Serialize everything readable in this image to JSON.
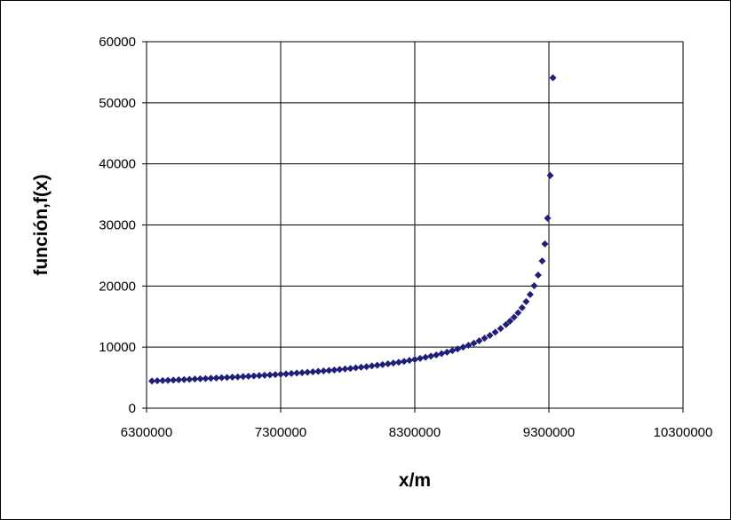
{
  "chart_data": {
    "type": "scatter",
    "title": "",
    "xlabel": "x/m",
    "ylabel": "función,f(x)",
    "xlim": [
      6300000,
      10300000
    ],
    "ylim": [
      0,
      60000
    ],
    "xticks": [
      6300000,
      7300000,
      8300000,
      9300000,
      10300000
    ],
    "yticks": [
      0,
      10000,
      20000,
      30000,
      40000,
      50000,
      60000
    ],
    "x_tick_labels": [
      "6300000",
      "7300000",
      "8300000",
      "9300000",
      "10300000"
    ],
    "y_tick_labels": [
      "0",
      "10000",
      "20000",
      "30000",
      "40000",
      "50000",
      "60000"
    ],
    "grid": true,
    "marker": "diamond",
    "colors": {
      "marker": "#1f1f7a",
      "grid": "#000000",
      "frame": "#000000"
    },
    "series": [
      {
        "points": [
          [
            6340000,
            4450
          ],
          [
            6380000,
            4480
          ],
          [
            6420000,
            4520
          ],
          [
            6460000,
            4560
          ],
          [
            6500000,
            4600
          ],
          [
            6540000,
            4640
          ],
          [
            6580000,
            4680
          ],
          [
            6620000,
            4720
          ],
          [
            6660000,
            4770
          ],
          [
            6700000,
            4810
          ],
          [
            6740000,
            4850
          ],
          [
            6780000,
            4900
          ],
          [
            6820000,
            4940
          ],
          [
            6860000,
            4990
          ],
          [
            6900000,
            5030
          ],
          [
            6940000,
            5080
          ],
          [
            6980000,
            5130
          ],
          [
            7020000,
            5180
          ],
          [
            7060000,
            5230
          ],
          [
            7100000,
            5280
          ],
          [
            7140000,
            5340
          ],
          [
            7180000,
            5390
          ],
          [
            7220000,
            5450
          ],
          [
            7260000,
            5500
          ],
          [
            7300000,
            5560
          ],
          [
            7340000,
            5620
          ],
          [
            7380000,
            5680
          ],
          [
            7420000,
            5750
          ],
          [
            7460000,
            5810
          ],
          [
            7500000,
            5880
          ],
          [
            7540000,
            5950
          ],
          [
            7580000,
            6020
          ],
          [
            7620000,
            6100
          ],
          [
            7660000,
            6170
          ],
          [
            7700000,
            6250
          ],
          [
            7740000,
            6340
          ],
          [
            7780000,
            6420
          ],
          [
            7820000,
            6510
          ],
          [
            7860000,
            6610
          ],
          [
            7900000,
            6700
          ],
          [
            7940000,
            6800
          ],
          [
            7980000,
            6910
          ],
          [
            8020000,
            7020
          ],
          [
            8060000,
            7140
          ],
          [
            8100000,
            7260
          ],
          [
            8140000,
            7390
          ],
          [
            8180000,
            7520
          ],
          [
            8220000,
            7670
          ],
          [
            8260000,
            7820
          ],
          [
            8300000,
            7980
          ],
          [
            8340000,
            8150
          ],
          [
            8380000,
            8330
          ],
          [
            8420000,
            8520
          ],
          [
            8460000,
            8720
          ],
          [
            8500000,
            8940
          ],
          [
            8540000,
            9170
          ],
          [
            8580000,
            9420
          ],
          [
            8620000,
            9690
          ],
          [
            8660000,
            9990
          ],
          [
            8700000,
            10300
          ],
          [
            8740000,
            10650
          ],
          [
            8780000,
            11030
          ],
          [
            8820000,
            11450
          ],
          [
            8860000,
            11920
          ],
          [
            8900000,
            12440
          ],
          [
            8940000,
            13030
          ],
          [
            8980000,
            13700
          ],
          [
            9010000,
            14260
          ],
          [
            9040000,
            14900
          ],
          [
            9070000,
            15620
          ],
          [
            9100000,
            16460
          ],
          [
            9130000,
            17450
          ],
          [
            9160000,
            18620
          ],
          [
            9190000,
            20040
          ],
          [
            9220000,
            21800
          ],
          [
            9250000,
            24100
          ],
          [
            9270000,
            26900
          ],
          [
            9290000,
            31100
          ],
          [
            9310000,
            38100
          ],
          [
            9330000,
            54100
          ]
        ]
      }
    ]
  }
}
